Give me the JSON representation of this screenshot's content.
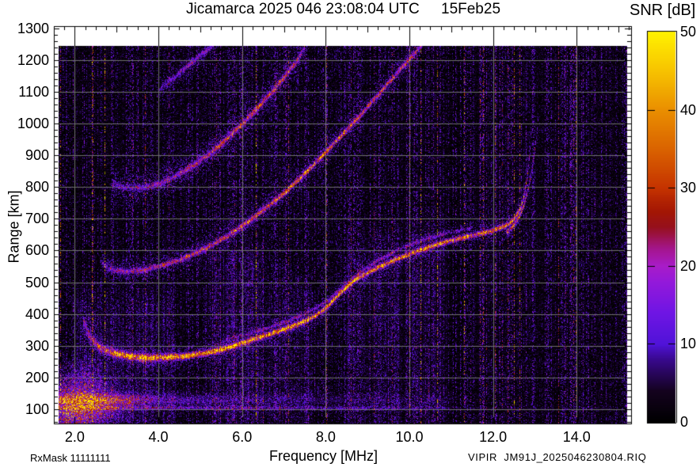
{
  "header": {
    "title": "Jicamarca 2025 046 23:08:04 UTC",
    "date": "15Feb25"
  },
  "colorbar": {
    "title": "SNR [dB]",
    "min": 0,
    "max": 50,
    "tick_values": [
      0,
      10,
      20,
      30,
      40,
      50
    ],
    "tick_labels": [
      "0",
      "10",
      "20",
      "30",
      "40",
      "50"
    ],
    "stops": [
      [
        0,
        "#000000"
      ],
      [
        4,
        "#14021f"
      ],
      [
        8,
        "#38088c"
      ],
      [
        10,
        "#5013d8"
      ],
      [
        14,
        "#6f15e4"
      ],
      [
        18,
        "#9419da"
      ],
      [
        20,
        "#a81cc8"
      ],
      [
        22,
        "#a51694"
      ],
      [
        25,
        "#96101c"
      ],
      [
        27,
        "#a31604"
      ],
      [
        30,
        "#c53300"
      ],
      [
        35,
        "#da6300"
      ],
      [
        40,
        "#ea8f00"
      ],
      [
        45,
        "#f7c300"
      ],
      [
        50,
        "#fff200"
      ]
    ]
  },
  "footer": {
    "rx_mask": "RxMask 11111111",
    "file_label": "VIPIR  JM91J_2025046230804.RIQ"
  },
  "chart_data": {
    "type": "heatmap",
    "title": "Jicamarca 2025 046 23:08:04 UTC 15Feb25",
    "xlabel": "Frequency [MHz]",
    "ylabel": "Range [km]",
    "zlabel": "SNR [dB]",
    "xlim": [
      1.5,
      15.3
    ],
    "ylim": [
      55,
      1307
    ],
    "zlim": [
      0,
      50
    ],
    "grid": true,
    "grid_color": "#6f6f6f",
    "x_tick_values": [
      2,
      4,
      6,
      8,
      10,
      12,
      14
    ],
    "x_tick_labels": [
      "2.0",
      "4.0",
      "6.0",
      "8.0",
      "10.0",
      "12.0",
      "14.0"
    ],
    "x_minor_step": 0.25,
    "y_tick_values": [
      100,
      200,
      300,
      400,
      500,
      600,
      700,
      800,
      900,
      1000,
      1100,
      1200,
      1300
    ],
    "y_tick_labels": [
      "100",
      "200",
      "300",
      "400",
      "500",
      "600",
      "700",
      "800",
      "900",
      "1000",
      "1100",
      "1200",
      "1300"
    ],
    "y_minor_step": 20,
    "data_range_max_km": 1245,
    "critical_frequency_mhz": 12.9,
    "series": [
      {
        "name": "F-layer first hop O-mode",
        "points": [
          [
            2.2,
            380
          ],
          [
            2.35,
            330
          ],
          [
            2.55,
            300
          ],
          [
            2.8,
            283
          ],
          [
            3.2,
            270
          ],
          [
            3.7,
            263
          ],
          [
            4.2,
            264
          ],
          [
            4.7,
            270
          ],
          [
            5.2,
            280
          ],
          [
            5.7,
            296
          ],
          [
            6.2,
            318
          ],
          [
            6.7,
            340
          ],
          [
            7.2,
            362
          ],
          [
            7.7,
            392
          ],
          [
            8.0,
            420
          ],
          [
            8.3,
            462
          ],
          [
            8.7,
            510
          ],
          [
            9.2,
            545
          ],
          [
            9.7,
            575
          ],
          [
            10.2,
            600
          ],
          [
            10.7,
            622
          ],
          [
            11.2,
            640
          ],
          [
            11.7,
            655
          ],
          [
            12.0,
            665
          ],
          [
            12.3,
            680
          ],
          [
            12.5,
            700
          ],
          [
            12.65,
            735
          ],
          [
            12.75,
            785
          ],
          [
            12.82,
            845
          ],
          [
            12.87,
            910
          ],
          [
            12.9,
            975
          ]
        ],
        "amps": [
          [
            2.2,
            14
          ],
          [
            2.5,
            22
          ],
          [
            2.8,
            30
          ],
          [
            3.2,
            40
          ],
          [
            3.6,
            45
          ],
          [
            4.5,
            46
          ],
          [
            6.0,
            46
          ],
          [
            8.0,
            45
          ],
          [
            9.0,
            43
          ],
          [
            10.0,
            41
          ],
          [
            10.8,
            39
          ],
          [
            11.5,
            37
          ],
          [
            12.0,
            36
          ],
          [
            12.3,
            34
          ],
          [
            12.55,
            32
          ],
          [
            12.7,
            29
          ],
          [
            12.8,
            25
          ],
          [
            12.87,
            18
          ],
          [
            12.9,
            12
          ]
        ],
        "sigmas": [
          [
            2.2,
            9
          ],
          [
            2.8,
            8
          ],
          [
            3.5,
            7
          ],
          [
            4.5,
            6
          ],
          [
            6.0,
            5
          ],
          [
            8.0,
            4.5
          ],
          [
            13.0,
            4.5
          ]
        ],
        "fuzz_amp": 8,
        "fuzz_sigma": 20,
        "jitter": 4
      },
      {
        "name": "F-layer first hop X-mode branch",
        "points": [
          [
            12.3,
            658
          ],
          [
            12.45,
            675
          ],
          [
            12.6,
            702
          ],
          [
            12.72,
            740
          ],
          [
            12.82,
            788
          ],
          [
            12.9,
            840
          ],
          [
            12.97,
            900
          ],
          [
            13.03,
            962
          ],
          [
            13.07,
            1020
          ]
        ],
        "amps": [
          [
            12.3,
            22
          ],
          [
            12.5,
            26
          ],
          [
            12.65,
            26
          ],
          [
            12.8,
            23
          ],
          [
            12.9,
            19
          ],
          [
            12.98,
            14
          ],
          [
            13.04,
            10
          ],
          [
            13.07,
            6
          ]
        ],
        "sigmas": [
          [
            12.3,
            4.5
          ],
          [
            13.07,
            4.5
          ]
        ],
        "fuzz_amp": 5,
        "fuzz_sigma": 14,
        "jitter": 5
      },
      {
        "name": "F-layer X-mode parallel trace",
        "points": [
          [
            5.5,
            315
          ],
          [
            6.0,
            333
          ],
          [
            6.5,
            354
          ],
          [
            7.0,
            375
          ],
          [
            7.5,
            402
          ],
          [
            8.0,
            440
          ],
          [
            8.4,
            486
          ],
          [
            8.8,
            532
          ],
          [
            9.2,
            566
          ],
          [
            9.6,
            596
          ],
          [
            10.0,
            620
          ],
          [
            10.5,
            642
          ],
          [
            11.0,
            660
          ],
          [
            11.5,
            674
          ]
        ],
        "amps": [
          [
            5.5,
            7
          ],
          [
            6.5,
            10
          ],
          [
            7.5,
            12
          ],
          [
            8.5,
            12
          ],
          [
            9.5,
            12
          ],
          [
            10.5,
            10
          ],
          [
            11.0,
            9
          ],
          [
            11.5,
            6
          ]
        ],
        "sigmas": [
          [
            5.5,
            3.5
          ],
          [
            11.5,
            3.5
          ]
        ],
        "fuzz_amp": 3,
        "fuzz_sigma": 10,
        "jitter": 5
      },
      {
        "name": "second hop echo",
        "points": [
          [
            2.65,
            560
          ],
          [
            2.8,
            545
          ],
          [
            3.0,
            537
          ],
          [
            3.3,
            535
          ],
          [
            3.7,
            542
          ],
          [
            4.1,
            555
          ],
          [
            4.5,
            572
          ],
          [
            5.0,
            600
          ],
          [
            5.5,
            635
          ],
          [
            6.0,
            678
          ],
          [
            6.5,
            728
          ],
          [
            7.0,
            782
          ],
          [
            7.5,
            845
          ],
          [
            8.0,
            912
          ],
          [
            8.5,
            982
          ],
          [
            9.0,
            1055
          ],
          [
            9.5,
            1130
          ],
          [
            10.0,
            1205
          ],
          [
            10.3,
            1248
          ]
        ],
        "amps": [
          [
            2.65,
            12
          ],
          [
            3.0,
            16
          ],
          [
            3.5,
            18
          ],
          [
            4.0,
            21
          ],
          [
            4.6,
            24
          ],
          [
            5.2,
            27
          ],
          [
            5.8,
            30
          ],
          [
            6.4,
            33
          ],
          [
            7.0,
            34
          ],
          [
            7.6,
            34
          ],
          [
            8.2,
            33
          ],
          [
            8.8,
            31
          ],
          [
            9.4,
            28
          ],
          [
            10.0,
            24
          ],
          [
            10.3,
            18
          ]
        ],
        "sigmas": [
          [
            2.65,
            6
          ],
          [
            4.0,
            5
          ],
          [
            10.3,
            5
          ]
        ],
        "fuzz_amp": 9,
        "fuzz_sigma": 22,
        "jitter": 6
      },
      {
        "name": "third hop echo",
        "points": [
          [
            2.9,
            810
          ],
          [
            3.2,
            800
          ],
          [
            3.6,
            800
          ],
          [
            4.0,
            812
          ],
          [
            4.4,
            835
          ],
          [
            4.8,
            868
          ],
          [
            5.2,
            905
          ],
          [
            5.6,
            950
          ],
          [
            6.0,
            1000
          ],
          [
            6.4,
            1055
          ],
          [
            6.8,
            1115
          ],
          [
            7.2,
            1180
          ],
          [
            7.5,
            1240
          ]
        ],
        "amps": [
          [
            2.9,
            8
          ],
          [
            3.4,
            11
          ],
          [
            4.0,
            15
          ],
          [
            4.6,
            19
          ],
          [
            5.2,
            23
          ],
          [
            5.8,
            26
          ],
          [
            6.3,
            28
          ],
          [
            6.8,
            26
          ],
          [
            7.2,
            22
          ],
          [
            7.5,
            15
          ]
        ],
        "sigmas": [
          [
            2.9,
            6
          ],
          [
            7.5,
            6
          ]
        ],
        "fuzz_amp": 10,
        "fuzz_sigma": 26,
        "jitter": 7
      },
      {
        "name": "fourth hop echo",
        "points": [
          [
            4.0,
            1105
          ],
          [
            4.3,
            1140
          ],
          [
            4.6,
            1172
          ],
          [
            4.9,
            1205
          ],
          [
            5.2,
            1238
          ],
          [
            5.35,
            1256
          ]
        ],
        "amps": [
          [
            4.0,
            7
          ],
          [
            4.3,
            12
          ],
          [
            4.7,
            15
          ],
          [
            5.0,
            14
          ],
          [
            5.2,
            12
          ],
          [
            5.35,
            8
          ]
        ],
        "sigmas": [
          [
            4.0,
            5.5
          ],
          [
            5.35,
            5.5
          ]
        ],
        "fuzz_amp": 7,
        "fuzz_sigma": 18,
        "jitter": 7
      }
    ],
    "e_region_bands": [
      {
        "center_km": 130,
        "half_width_km": 20,
        "amp_by_freq": [
          [
            1.6,
            22
          ],
          [
            2.6,
            24
          ],
          [
            3.3,
            22
          ],
          [
            3.8,
            14
          ],
          [
            4.5,
            10
          ],
          [
            5.5,
            8
          ],
          [
            6.5,
            6
          ],
          [
            8.0,
            4.5
          ],
          [
            10.0,
            3.5
          ],
          [
            10.8,
            2
          ],
          [
            11.5,
            0
          ]
        ]
      },
      {
        "center_km": 105,
        "half_width_km": 6,
        "amp_by_freq": [
          [
            1.6,
            15
          ],
          [
            3.5,
            14
          ],
          [
            5.0,
            12
          ],
          [
            7.0,
            10
          ],
          [
            9.0,
            8
          ],
          [
            10.5,
            6
          ],
          [
            11.2,
            3
          ],
          [
            12.0,
            1.5
          ],
          [
            15.0,
            1
          ]
        ]
      }
    ],
    "noise_blobs": [
      {
        "f": 2.05,
        "r": 140,
        "sf": 0.5,
        "sr": 60,
        "amp": 20
      },
      {
        "f": 2.5,
        "r": 105,
        "sf": 0.5,
        "sr": 35,
        "amp": 14
      },
      {
        "f": 1.8,
        "r": 80,
        "sf": 0.35,
        "sr": 40,
        "amp": 16
      }
    ],
    "noise_bands": [
      {
        "f0": 1.9,
        "f1": 4.4,
        "rmax": 430,
        "amp": 7.5
      },
      {
        "f0": 5.1,
        "f1": 6.5,
        "rmax": 560,
        "amp": 6.5
      },
      {
        "f0": 6.6,
        "f1": 7.7,
        "rmax": 470,
        "amp": 4.5
      },
      {
        "f0": 8.5,
        "f1": 9.8,
        "rmax": 620,
        "amp": 5.5
      },
      {
        "f0": 9.9,
        "f1": 10.9,
        "rmax": 650,
        "amp": 4.5
      },
      {
        "f0": 11.5,
        "f1": 15.2,
        "rmax": 1250,
        "amp": 2.2
      },
      {
        "f0": 2.0,
        "f1": 11.0,
        "rmax": 1250,
        "amp": 1.3
      }
    ]
  }
}
